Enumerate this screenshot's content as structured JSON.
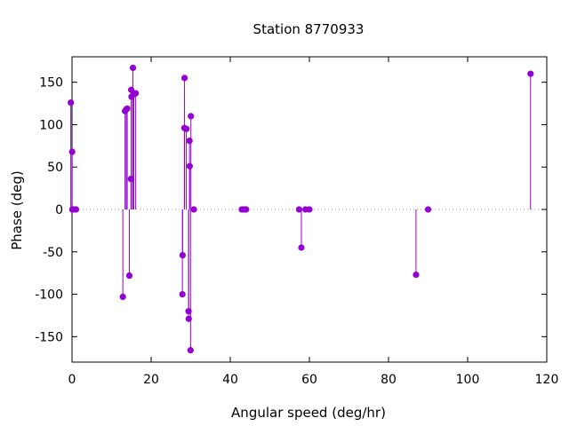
{
  "chart_data": {
    "type": "scatter",
    "style": "impulses-with-points",
    "title": "Station 8770933",
    "xlabel": "Angular speed (deg/hr)",
    "ylabel": "Phase (deg)",
    "xlim": [
      0,
      120
    ],
    "ylim": [
      -180,
      180
    ],
    "xticks": [
      0,
      20,
      40,
      60,
      80,
      100,
      120
    ],
    "yticks": [
      -150,
      -100,
      -50,
      0,
      50,
      100,
      150
    ],
    "zero_line": true,
    "grid": false,
    "color": "#9400d3",
    "points": [
      {
        "x": -0.3,
        "y": 126
      },
      {
        "x": 0.04,
        "y": 68
      },
      {
        "x": 0.08,
        "y": 0
      },
      {
        "x": 0.5,
        "y": 0
      },
      {
        "x": 1.0,
        "y": 0
      },
      {
        "x": 12.85,
        "y": -103
      },
      {
        "x": 13.4,
        "y": 116
      },
      {
        "x": 13.7,
        "y": 118
      },
      {
        "x": 13.95,
        "y": 119
      },
      {
        "x": 14.5,
        "y": -78
      },
      {
        "x": 14.9,
        "y": 36
      },
      {
        "x": 14.96,
        "y": 141
      },
      {
        "x": 15.04,
        "y": 133
      },
      {
        "x": 15.4,
        "y": 167
      },
      {
        "x": 15.6,
        "y": 136
      },
      {
        "x": 16.1,
        "y": 137
      },
      {
        "x": 27.9,
        "y": -100
      },
      {
        "x": 27.95,
        "y": -54
      },
      {
        "x": 28.4,
        "y": 96
      },
      {
        "x": 28.44,
        "y": 155
      },
      {
        "x": 28.9,
        "y": 95
      },
      {
        "x": 29.45,
        "y": -120
      },
      {
        "x": 29.5,
        "y": -129
      },
      {
        "x": 29.7,
        "y": 81
      },
      {
        "x": 29.75,
        "y": 51
      },
      {
        "x": 29.96,
        "y": -166
      },
      {
        "x": 30.05,
        "y": 110
      },
      {
        "x": 30.8,
        "y": 0
      },
      {
        "x": 42.9,
        "y": 0
      },
      {
        "x": 43.5,
        "y": 0
      },
      {
        "x": 44.0,
        "y": 0
      },
      {
        "x": 57.4,
        "y": 0
      },
      {
        "x": 57.97,
        "y": -45
      },
      {
        "x": 59.0,
        "y": 0
      },
      {
        "x": 60.0,
        "y": 0
      },
      {
        "x": 86.95,
        "y": -77
      },
      {
        "x": 90.0,
        "y": 0
      },
      {
        "x": 115.9,
        "y": 160
      }
    ]
  }
}
